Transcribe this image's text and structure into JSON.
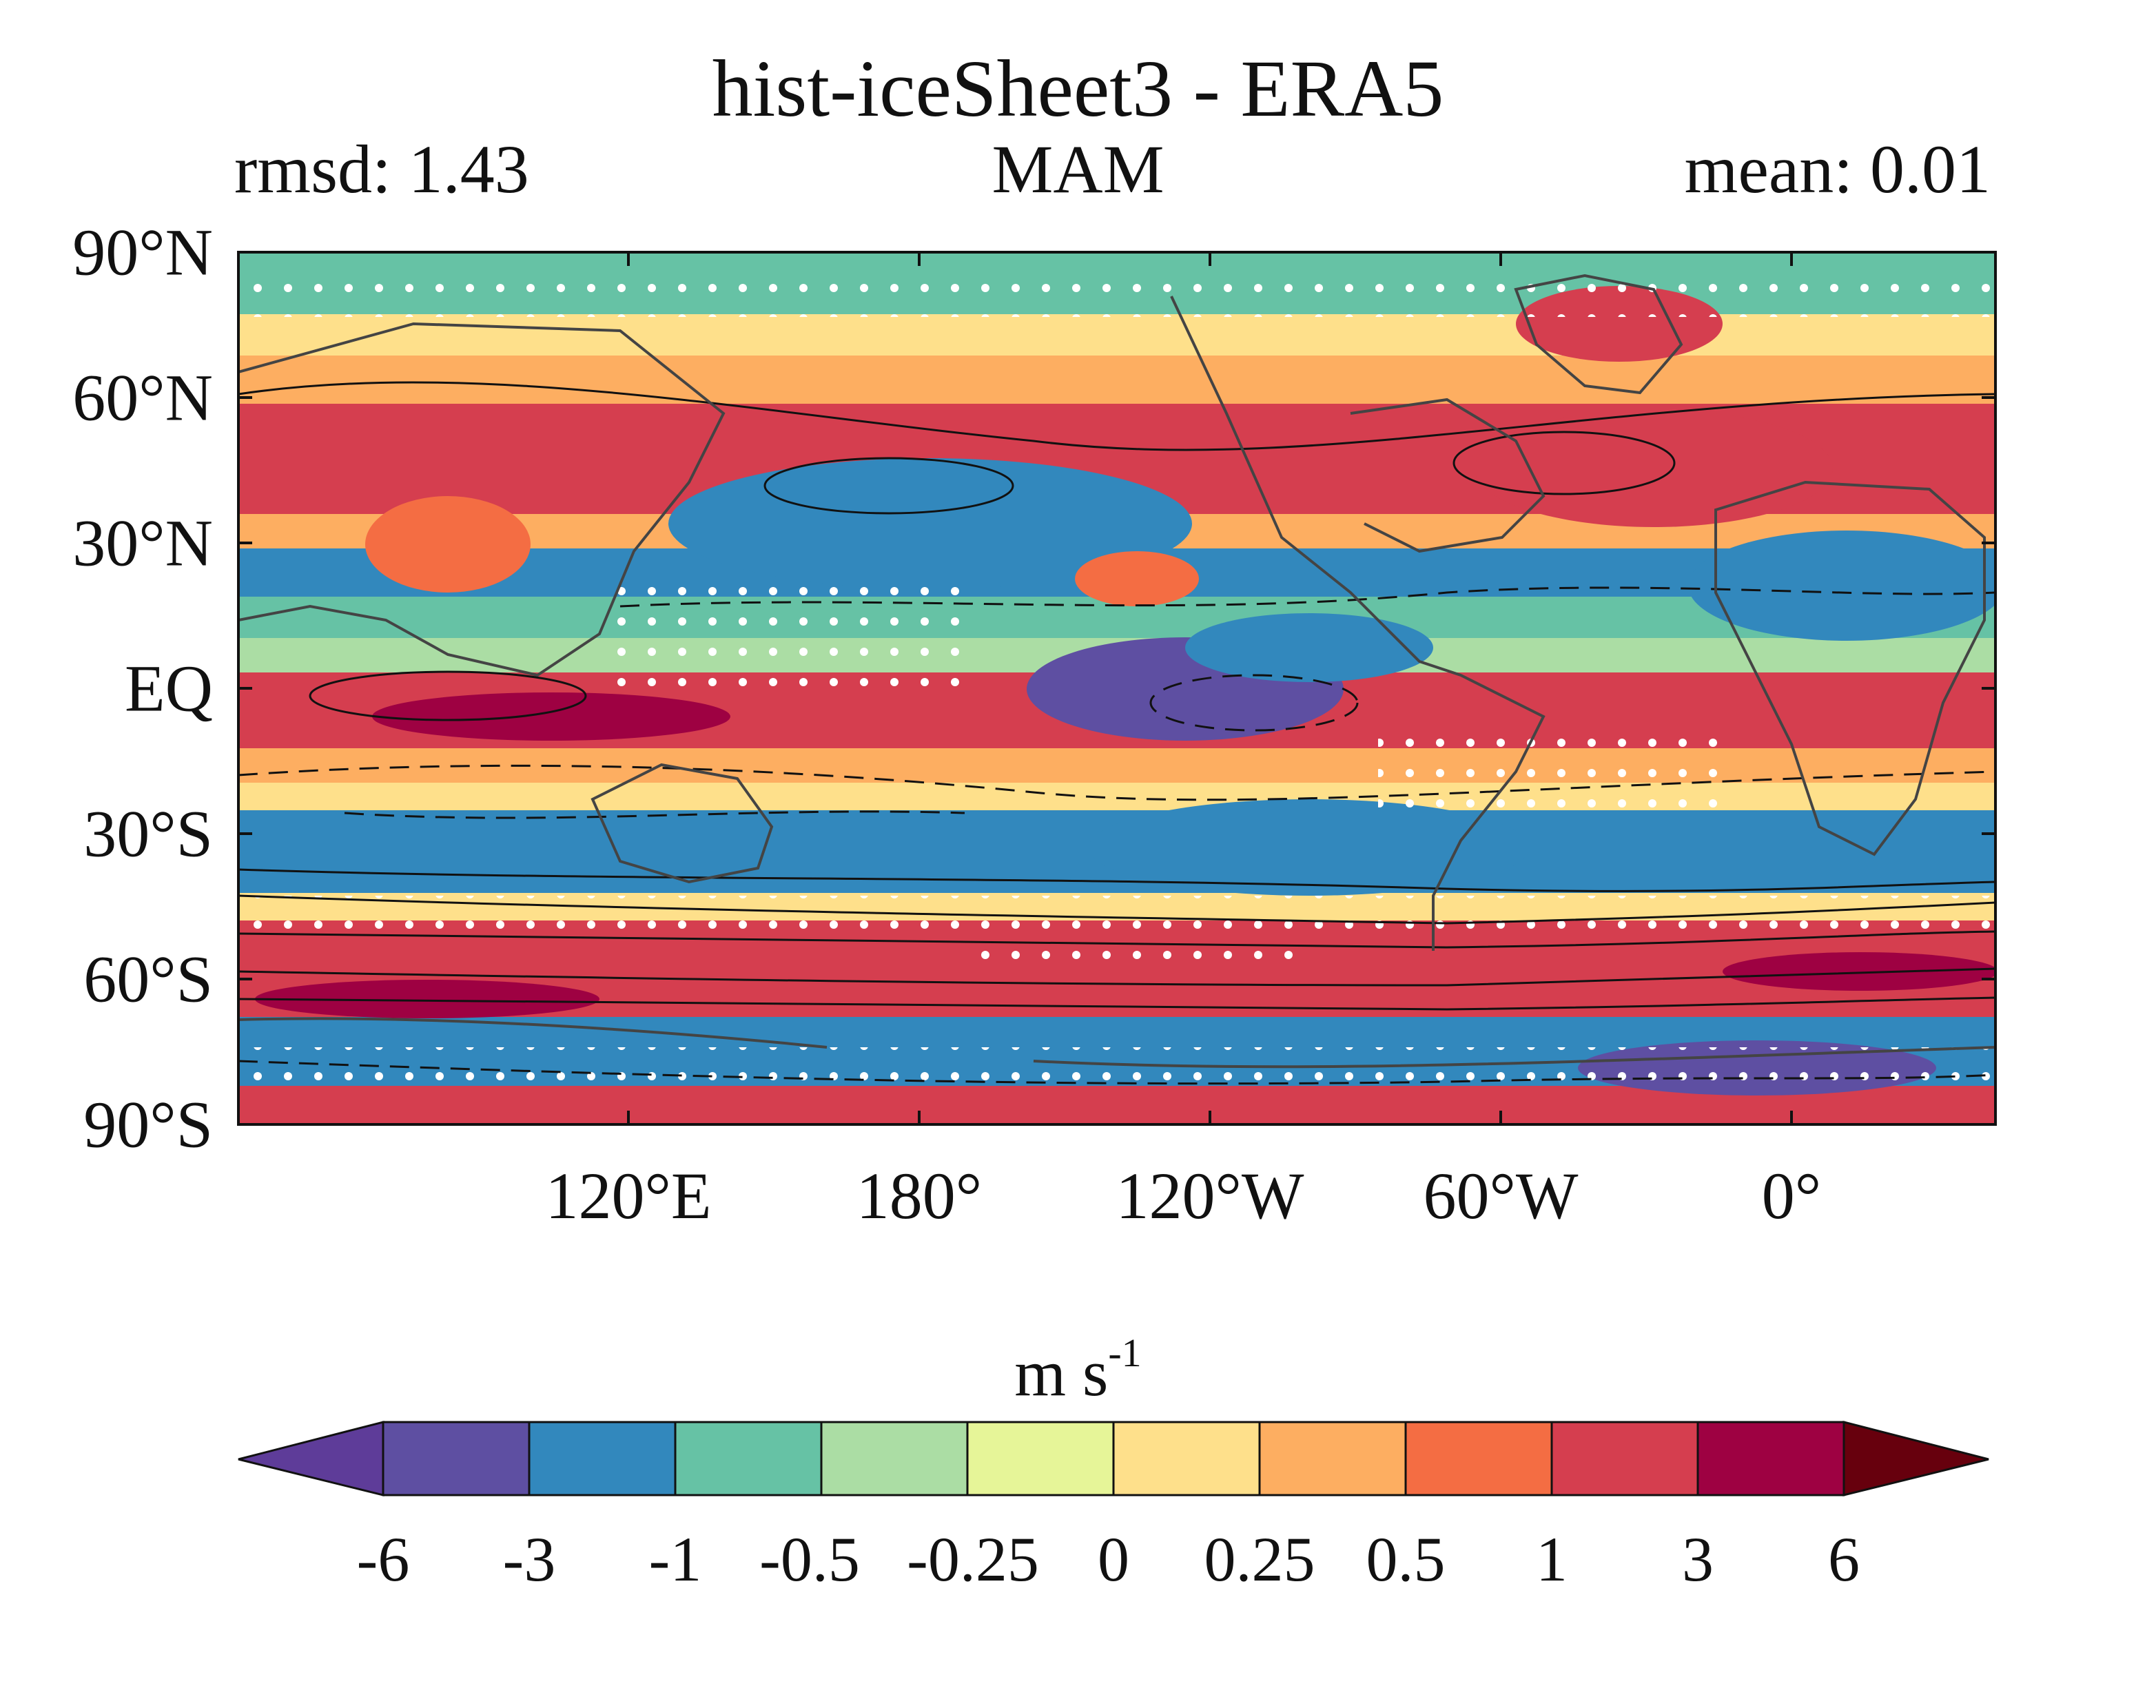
{
  "title": "hist-iceSheet3 - ERA5",
  "left_stat": "rmsd: 1.43",
  "season": "MAM",
  "right_stat": "mean: 0.01",
  "lat_ticks": [
    "90°N",
    "60°N",
    "30°N",
    "EQ",
    "30°S",
    "60°S",
    "90°S"
  ],
  "lon_ticks": [
    "120°E",
    "180°",
    "120°W",
    "60°W",
    "0°"
  ],
  "colorbar": {
    "unit_base": "m s",
    "unit_exp": "-1",
    "levels": [
      "-6",
      "-3",
      "-1",
      "-0.5",
      "-0.25",
      "0",
      "0.25",
      "0.5",
      "1",
      "3",
      "6"
    ],
    "colors": [
      "#5e3c99",
      "#5e4fa2",
      "#3288bd",
      "#66c2a5",
      "#abdda4",
      "#e6f598",
      "#fee08b",
      "#fdae61",
      "#f46d43",
      "#d53e4f",
      "#9e0142",
      "#67000d"
    ]
  }
}
